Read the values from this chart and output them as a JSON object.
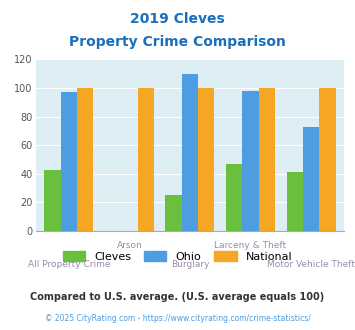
{
  "title_line1": "2019 Cleves",
  "title_line2": "Property Crime Comparison",
  "categories": [
    "All Property Crime",
    "Arson",
    "Burglary",
    "Larceny & Theft",
    "Motor Vehicle Theft"
  ],
  "cleves": [
    43,
    0,
    25,
    47,
    41
  ],
  "ohio": [
    97,
    0,
    110,
    98,
    73
  ],
  "national": [
    100,
    100,
    100,
    100,
    100
  ],
  "cleves_color": "#6abf3f",
  "ohio_color": "#4d9de0",
  "national_color": "#f5a623",
  "bg_color": "#ddeef4",
  "title_color": "#1a6fba",
  "xlabel_color": "#9b8aaa",
  "ylabel_values": [
    0,
    20,
    40,
    60,
    80,
    100,
    120
  ],
  "ylim": [
    0,
    120
  ],
  "footnote1": "Compared to U.S. average. (U.S. average equals 100)",
  "footnote2": "© 2025 CityRating.com - https://www.cityrating.com/crime-statistics/",
  "footnote1_color": "#333333",
  "footnote2_color": "#4d9de0"
}
